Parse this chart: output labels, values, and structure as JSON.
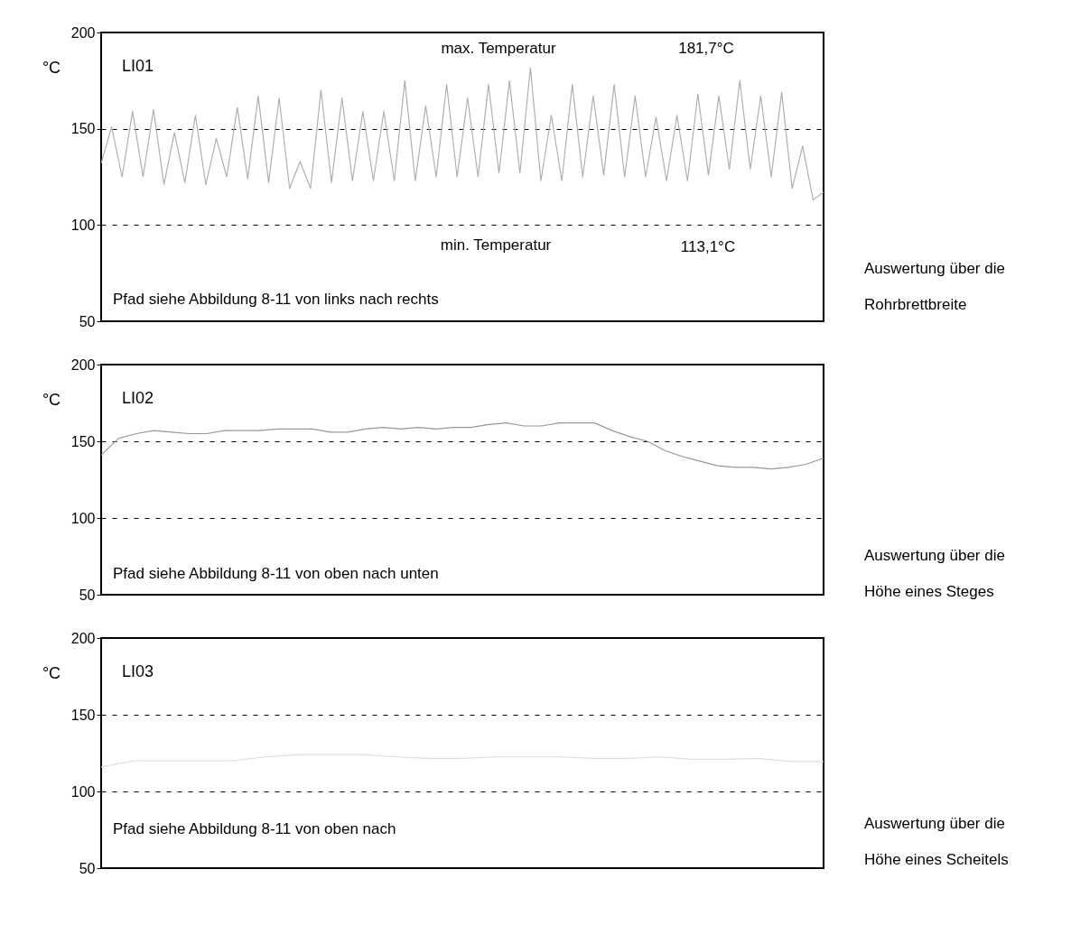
{
  "chart_data": [
    {
      "type": "line",
      "title": "LI01",
      "ylabel": "°C",
      "color": "#b0b0b0",
      "ylim": [
        50,
        200
      ],
      "yticks": [
        50,
        100,
        150,
        200
      ],
      "grid": "y",
      "tick_labels": "y",
      "categories": [
        null,
        null,
        null,
        null,
        null,
        null,
        null,
        null,
        null,
        null,
        null,
        null,
        null,
        null,
        null,
        null,
        null,
        null,
        null,
        null,
        null,
        null,
        null,
        null,
        null,
        null,
        null,
        null,
        null,
        null,
        null,
        null,
        null,
        null,
        null,
        null,
        null,
        null,
        null,
        null,
        null,
        null,
        null,
        null,
        null,
        null,
        null,
        null,
        null,
        null,
        null,
        null,
        null,
        null,
        null,
        null,
        null,
        null,
        null,
        null,
        null,
        null,
        null,
        null,
        null,
        null,
        null,
        null,
        null,
        null
      ],
      "values": [
        132,
        151,
        125,
        159,
        125,
        160,
        121,
        148,
        122,
        157,
        121,
        145,
        125,
        161,
        124,
        167,
        122,
        166,
        119,
        133,
        119,
        170,
        122,
        166,
        123,
        159,
        123,
        159,
        123,
        175,
        123,
        162,
        125,
        173,
        125,
        166,
        125,
        173,
        127,
        175,
        127,
        181.7,
        123,
        157,
        123,
        173,
        125,
        167,
        126,
        173,
        125,
        167,
        125,
        156,
        123,
        157,
        123,
        168,
        126,
        167,
        129,
        175,
        129,
        167,
        125,
        169,
        119,
        141,
        113.1,
        117
      ],
      "annotations": [
        "max. Temperatur",
        "181,7°C",
        "min. Temperatur",
        "113,1°C",
        "Pfad siehe Abbildung 8-11 von links nach rechts",
        "Auswertung über die",
        "Rohrbrettbreite"
      ]
    },
    {
      "type": "line",
      "title": "LI02",
      "ylabel": "°C",
      "color": "#999999",
      "ylim": [
        50,
        200
      ],
      "yticks": [
        50,
        100,
        150,
        200
      ],
      "grid": "y",
      "tick_labels": "y",
      "categories": [
        null,
        null,
        null,
        null,
        null,
        null,
        null,
        null,
        null,
        null,
        null,
        null,
        null,
        null,
        null,
        null,
        null,
        null,
        null,
        null,
        null,
        null,
        null,
        null,
        null,
        null,
        null,
        null,
        null,
        null,
        null,
        null,
        null,
        null,
        null,
        null,
        null,
        null,
        null,
        null,
        null,
        null
      ],
      "values": [
        141,
        152,
        155,
        157,
        156,
        155,
        155,
        157,
        157,
        157,
        158,
        158,
        158,
        156,
        156,
        158,
        159,
        158,
        159,
        158,
        159,
        159,
        161,
        162,
        160,
        160,
        162,
        162,
        162,
        157,
        153,
        150,
        144,
        140,
        137,
        134,
        133,
        133,
        132,
        133,
        135,
        139
      ],
      "annotations": [
        "Pfad siehe Abbildung 8-11 von oben nach unten",
        "Auswertung über die",
        "Höhe eines Steges"
      ]
    },
    {
      "type": "line",
      "title": "LI03",
      "ylabel": "°C",
      "color": "#dddddd",
      "ylim": [
        50,
        200
      ],
      "yticks": [
        50,
        100,
        150,
        200
      ],
      "grid": "y",
      "tick_labels": "y",
      "categories": [
        null,
        null,
        null,
        null,
        null,
        null,
        null,
        null,
        null,
        null,
        null,
        null,
        null,
        null,
        null,
        null,
        null,
        null,
        null,
        null,
        null,
        null,
        null
      ],
      "values": [
        116,
        120,
        120,
        120,
        120,
        122.5,
        124,
        124,
        124,
        122.5,
        121.5,
        121.5,
        122.5,
        122.5,
        122.5,
        121.5,
        121.5,
        122.5,
        121,
        121,
        121.5,
        119.5,
        119.5
      ],
      "annotations": [
        "Pfad siehe Abbildung 8-11 von oben nach",
        "Auswertung über die",
        "Höhe eines Scheitels"
      ]
    }
  ]
}
